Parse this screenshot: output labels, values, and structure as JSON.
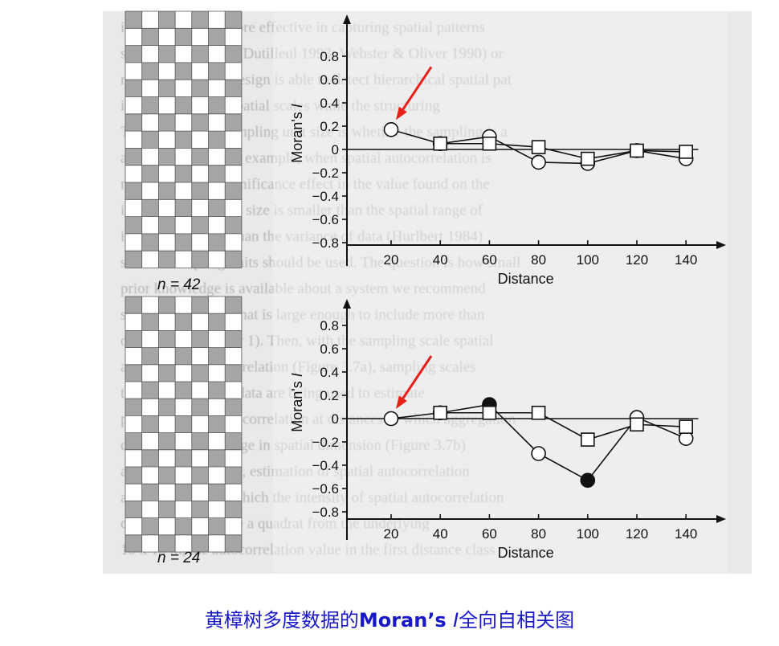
{
  "caption": {
    "before": "黄樟树多度数据的",
    "bold": "Moran’s ",
    "italic": "I",
    "after": "全向自相关图"
  },
  "colors": {
    "caption": "#1818c8",
    "arrow": "#e8201a",
    "checker": "#a5a5a5",
    "page_background": "#e9e9e9"
  },
  "background_text": [
    "is believed to be more effective in capturing spatial patterns",
    "small sample sizes (Dutilleul 1993; Webster & Oliver 1990) or",
    "random sampling design is able to detect hierarchical spatial pat",
    "in wide ranges of spatial scales while the structuring",
    "The selection of sampling unit size is whether the sampling is a",
    "appropriate one, for example, when spatial autocorrelation is",
    "normally of any significance effect in the value found on the",
    "in the sampling unit size is smaller than the spatial range of",
    "is more important than the variance of data (Hurlbert 1984)",
    "smaller sampling units should be used. The question is how small",
    "prior knowledge is available about a system we recommend",
    "sampling unit size that is large enough to include more than",
    "observed in Chapter 1). Then, with the sampling scale spatial",
    "aggregation autocorrelation (Figure 3.7a), sampling scales",
    "then, as the spatial data are being used to estimate",
    "positive spatial autocorrelation at distances in which aggregation",
    "checking for a change in spatial dimension (Figure 3.7b)",
    "a sampling unit size, estimation of spatial autocorrelation",
    "autocorrelation at which the intensity of spatial autocorrelation",
    "quadrat for example a quadrat from the underlying",
    "10 x 10 m, the autocorrelation value in the first distance class"
  ],
  "chart_data": [
    {
      "type": "line",
      "panel_label": "n = 42",
      "xlabel": "Distance",
      "ylabel": "Moran's I",
      "xticks": [
        20,
        40,
        60,
        80,
        100,
        120,
        140
      ],
      "yticks": [
        0.8,
        0.6,
        0.4,
        0.2,
        0,
        -0.2,
        -0.4,
        -0.6,
        -0.8
      ],
      "ytick_labels": [
        "0.8",
        "0.6",
        "0.4",
        "0.2",
        "0",
        "−0.2",
        "−0.4",
        "−0.6",
        "−0.8"
      ],
      "xlim": [
        0,
        150
      ],
      "ylim": [
        -0.8,
        0.95
      ],
      "annotation": "red-arrow-to-first-point",
      "series": [
        {
          "marker": "circle",
          "points": [
            {
              "x": 20,
              "y": 0.17,
              "filled": false
            },
            {
              "x": 40,
              "y": 0.05,
              "filled": false
            },
            {
              "x": 60,
              "y": 0.11,
              "filled": false
            },
            {
              "x": 80,
              "y": -0.11,
              "filled": false
            },
            {
              "x": 100,
              "y": -0.12,
              "filled": false
            },
            {
              "x": 120,
              "y": -0.01,
              "filled": false
            },
            {
              "x": 140,
              "y": -0.08,
              "filled": false
            }
          ]
        },
        {
          "marker": "square",
          "points": [
            {
              "x": 40,
              "y": 0.05,
              "filled": false
            },
            {
              "x": 60,
              "y": 0.05,
              "filled": false
            },
            {
              "x": 80,
              "y": 0.02,
              "filled": false
            },
            {
              "x": 100,
              "y": -0.08,
              "filled": false
            },
            {
              "x": 120,
              "y": -0.01,
              "filled": false
            },
            {
              "x": 140,
              "y": -0.02,
              "filled": false
            }
          ]
        }
      ]
    },
    {
      "type": "line",
      "panel_label": "n = 24",
      "xlabel": "Distance",
      "ylabel": "Moran's I",
      "xticks": [
        20,
        40,
        60,
        80,
        100,
        120,
        140
      ],
      "yticks": [
        0.8,
        0.6,
        0.4,
        0.2,
        0,
        -0.2,
        -0.4,
        -0.6,
        -0.8
      ],
      "ytick_labels": [
        "0.8",
        "0.6",
        "0.4",
        "0.2",
        "0",
        "−0.2",
        "−0.4",
        "−0.6",
        "−0.8"
      ],
      "xlim": [
        0,
        150
      ],
      "ylim": [
        -0.8,
        0.95
      ],
      "annotation": "red-arrow-to-first-point",
      "series": [
        {
          "marker": "circle",
          "points": [
            {
              "x": 20,
              "y": 0.0,
              "filled": false
            },
            {
              "x": 40,
              "y": 0.05,
              "filled": false
            },
            {
              "x": 60,
              "y": 0.12,
              "filled": true
            },
            {
              "x": 80,
              "y": -0.3,
              "filled": false
            },
            {
              "x": 100,
              "y": -0.53,
              "filled": true
            },
            {
              "x": 120,
              "y": 0.01,
              "filled": false
            },
            {
              "x": 140,
              "y": -0.17,
              "filled": false
            }
          ]
        },
        {
          "marker": "square",
          "points": [
            {
              "x": 40,
              "y": 0.05,
              "filled": false
            },
            {
              "x": 60,
              "y": 0.05,
              "filled": false
            },
            {
              "x": 80,
              "y": 0.05,
              "filled": false
            },
            {
              "x": 100,
              "y": -0.18,
              "filled": false
            },
            {
              "x": 120,
              "y": -0.05,
              "filled": false
            },
            {
              "x": 140,
              "y": -0.07,
              "filled": false
            }
          ]
        }
      ]
    }
  ]
}
